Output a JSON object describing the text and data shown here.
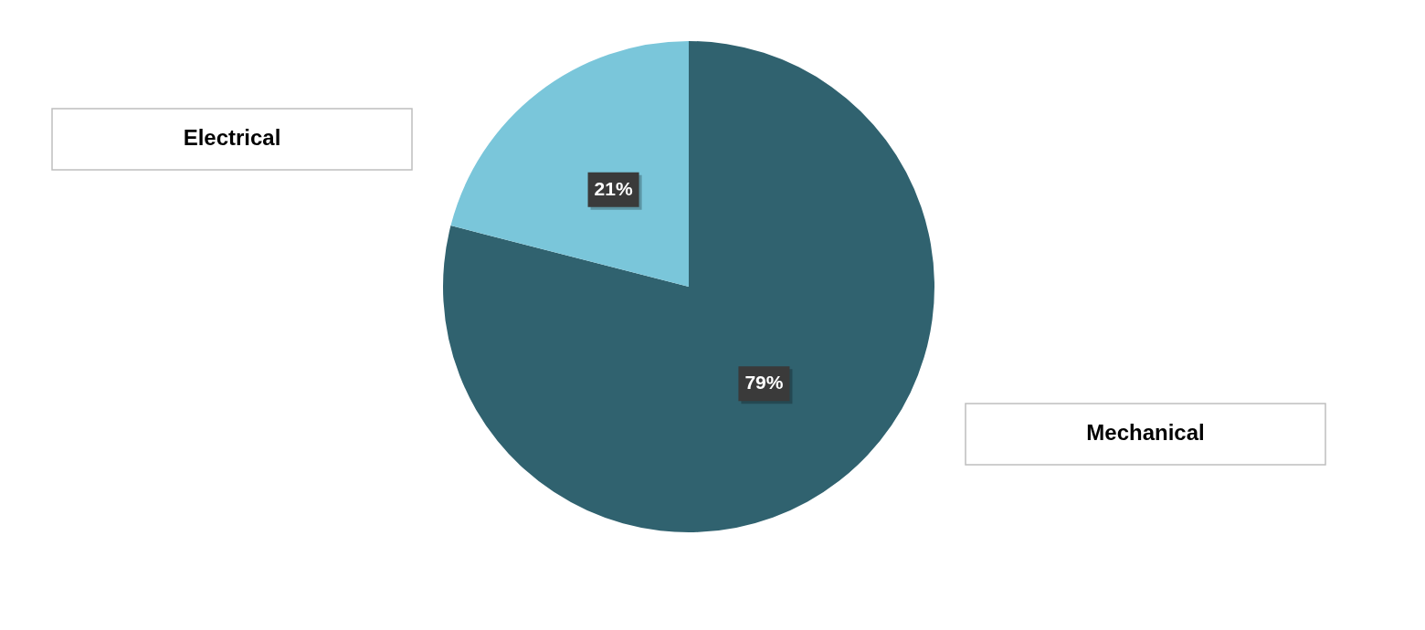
{
  "chart_data": {
    "type": "pie",
    "categories": [
      "Mechanical",
      "Electrical"
    ],
    "values": [
      79,
      21
    ],
    "colors": [
      "#30626f",
      "#7ac6da"
    ],
    "value_labels": [
      "79%",
      "21%"
    ],
    "legend": false
  }
}
